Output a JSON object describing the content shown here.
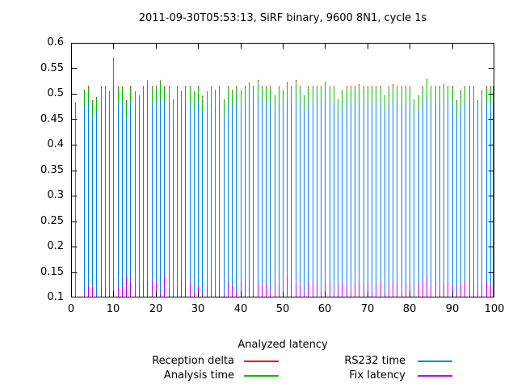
{
  "title": "2011-09-30T05:53:13, SiRF binary, 9600 8N1, cycle 1s",
  "legend": {
    "title": "Analyzed latency",
    "entries": [
      {
        "label": "Reception delta",
        "color": "#ff0000"
      },
      {
        "label": "Analysis time",
        "color": "#00c000"
      },
      {
        "label": "RS232 time",
        "color": "#0080ff"
      },
      {
        "label": "Fix latency",
        "color": "#c000ff"
      }
    ]
  },
  "chart_data": {
    "type": "bar",
    "style": "impulses",
    "title": "2011-09-30T05:53:13, SiRF binary, 9600 8N1, cycle 1s",
    "xlabel": "",
    "ylabel": "",
    "xlim": [
      0,
      100
    ],
    "ylim": [
      0.1,
      0.6
    ],
    "grid": false,
    "legend_title": "Analyzed latency",
    "legend_position": "below",
    "note": "gnuplot-style impulse plot; series drawn in listed order, later series overdraw earlier ones at the same x; point x=2 has no data",
    "x_ticks": {
      "values": [
        0,
        10,
        20,
        30,
        40,
        50,
        60,
        70,
        80,
        90,
        100
      ],
      "labels": [
        "0",
        "10",
        "20",
        "30",
        "40",
        "50",
        "60",
        "70",
        "80",
        "90",
        "100"
      ]
    },
    "y_ticks": {
      "values": [
        0.6,
        0.55,
        0.5,
        0.45,
        0.4,
        0.35,
        0.3,
        0.25,
        0.2,
        0.15,
        0.1
      ],
      "labels": [
        "0.6",
        "0.55",
        "0.5",
        "0.45",
        "0.4",
        "0.35",
        "0.3",
        "0.25",
        "0.2",
        "0.15",
        "0.1"
      ]
    },
    "x": [
      1,
      2,
      3,
      4,
      5,
      6,
      7,
      8,
      9,
      10,
      11,
      12,
      13,
      14,
      15,
      16,
      17,
      18,
      19,
      20,
      21,
      22,
      23,
      24,
      25,
      26,
      27,
      28,
      29,
      30,
      31,
      32,
      33,
      34,
      35,
      36,
      37,
      38,
      39,
      40,
      41,
      42,
      43,
      44,
      45,
      46,
      47,
      48,
      49,
      50,
      51,
      52,
      53,
      54,
      55,
      56,
      57,
      58,
      59,
      60,
      61,
      62,
      63,
      64,
      65,
      66,
      67,
      68,
      69,
      70,
      71,
      72,
      73,
      74,
      75,
      76,
      77,
      78,
      79,
      80,
      81,
      82,
      83,
      84,
      85,
      86,
      87,
      88,
      89,
      90,
      91,
      92,
      93,
      94,
      95,
      96,
      97,
      98,
      99,
      100
    ],
    "series": [
      {
        "name": "Reception delta",
        "color": "#ff0000",
        "values": [
          0.483,
          null,
          0.508,
          0.515,
          0.487,
          0.494,
          0.515,
          0.515,
          0.505,
          0.57,
          0.514,
          0.514,
          0.487,
          0.515,
          0.505,
          0.497,
          0.515,
          0.526,
          0.515,
          0.516,
          0.526,
          0.515,
          0.515,
          0.489,
          0.515,
          0.505,
          0.515,
          0.515,
          0.505,
          0.515,
          0.496,
          0.505,
          0.515,
          0.507,
          0.515,
          0.489,
          0.515,
          0.507,
          0.515,
          0.507,
          0.515,
          0.522,
          0.515,
          0.527,
          0.515,
          0.515,
          0.515,
          0.497,
          0.515,
          0.507,
          0.523,
          0.515,
          0.527,
          0.515,
          0.497,
          0.515,
          0.515,
          0.515,
          0.515,
          0.523,
          0.515,
          0.515,
          0.489,
          0.507,
          0.515,
          0.515,
          0.515,
          0.519,
          0.515,
          0.515,
          0.515,
          0.515,
          0.515,
          0.497,
          0.515,
          0.519,
          0.515,
          0.515,
          0.515,
          0.515,
          0.489,
          0.497,
          0.515,
          0.529,
          0.515,
          0.515,
          0.515,
          0.519,
          0.515,
          0.515,
          0.487,
          0.507,
          0.515,
          0.515,
          0.515,
          0.487,
          0.507,
          0.515,
          0.515,
          0.515
        ]
      },
      {
        "name": "Analysis time",
        "color": "#00c000",
        "values": [
          0.481,
          null,
          0.506,
          0.513,
          0.485,
          0.492,
          0.513,
          0.513,
          0.503,
          0.568,
          0.512,
          0.512,
          0.485,
          0.513,
          0.503,
          0.495,
          0.513,
          0.524,
          0.513,
          0.514,
          0.524,
          0.513,
          0.513,
          0.487,
          0.513,
          0.503,
          0.513,
          0.513,
          0.503,
          0.513,
          0.494,
          0.503,
          0.513,
          0.505,
          0.513,
          0.487,
          0.513,
          0.505,
          0.513,
          0.505,
          0.513,
          0.52,
          0.513,
          0.525,
          0.513,
          0.513,
          0.513,
          0.495,
          0.513,
          0.505,
          0.521,
          0.513,
          0.525,
          0.513,
          0.495,
          0.513,
          0.513,
          0.513,
          0.513,
          0.521,
          0.513,
          0.513,
          0.487,
          0.505,
          0.513,
          0.513,
          0.513,
          0.517,
          0.513,
          0.513,
          0.513,
          0.513,
          0.513,
          0.495,
          0.513,
          0.517,
          0.513,
          0.513,
          0.513,
          0.513,
          0.487,
          0.495,
          0.513,
          0.527,
          0.513,
          0.513,
          0.513,
          0.517,
          0.513,
          0.513,
          0.485,
          0.505,
          0.513,
          0.513,
          0.513,
          0.485,
          0.505,
          0.513,
          0.513,
          0.513
        ]
      },
      {
        "name": "RS232 time",
        "color": "#0080ff",
        "values": [
          0.449,
          null,
          0.478,
          0.483,
          0.455,
          0.465,
          0.483,
          0.483,
          0.473,
          0.525,
          0.483,
          0.483,
          0.455,
          0.483,
          0.473,
          0.465,
          0.483,
          0.49,
          0.483,
          0.483,
          0.49,
          0.483,
          0.483,
          0.457,
          0.483,
          0.473,
          0.483,
          0.483,
          0.473,
          0.483,
          0.465,
          0.473,
          0.483,
          0.475,
          0.483,
          0.457,
          0.483,
          0.475,
          0.483,
          0.475,
          0.483,
          0.488,
          0.483,
          0.492,
          0.483,
          0.483,
          0.483,
          0.465,
          0.483,
          0.475,
          0.488,
          0.483,
          0.492,
          0.483,
          0.465,
          0.483,
          0.483,
          0.483,
          0.483,
          0.488,
          0.483,
          0.483,
          0.457,
          0.475,
          0.483,
          0.483,
          0.483,
          0.485,
          0.483,
          0.483,
          0.483,
          0.483,
          0.483,
          0.465,
          0.483,
          0.485,
          0.483,
          0.483,
          0.483,
          0.483,
          0.457,
          0.465,
          0.483,
          0.494,
          0.483,
          0.483,
          0.483,
          0.485,
          0.483,
          0.483,
          0.455,
          0.475,
          0.483,
          0.483,
          0.483,
          0.455,
          0.475,
          0.483,
          0.483,
          0.483
        ]
      },
      {
        "name": "Fix latency",
        "color": "#c000ff",
        "values": [
          0.104,
          null,
          0.109,
          0.122,
          0.122,
          0.104,
          0.126,
          0.122,
          0.109,
          0.104,
          0.119,
          0.122,
          0.143,
          0.131,
          0.131,
          0.122,
          0.131,
          0.131,
          0.133,
          0.131,
          0.109,
          0.143,
          0.122,
          0.109,
          0.122,
          0.131,
          0.122,
          0.131,
          0.112,
          0.125,
          0.109,
          0.122,
          0.131,
          0.112,
          0.128,
          0.109,
          0.131,
          0.125,
          0.112,
          0.131,
          0.128,
          0.135,
          0.112,
          0.131,
          0.125,
          0.128,
          0.112,
          0.131,
          0.128,
          0.109,
          0.142,
          0.131,
          0.128,
          0.125,
          0.112,
          0.131,
          0.128,
          0.131,
          0.112,
          0.125,
          0.131,
          0.109,
          0.128,
          0.131,
          0.125,
          0.112,
          0.128,
          0.131,
          0.125,
          0.131,
          0.112,
          0.128,
          0.131,
          0.109,
          0.125,
          0.131,
          0.128,
          0.112,
          0.131,
          0.125,
          0.109,
          0.128,
          0.131,
          0.141,
          0.125,
          0.131,
          0.112,
          0.128,
          0.131,
          0.125,
          0.109,
          0.128,
          0.131,
          0.112,
          0.125,
          0.109,
          0.128,
          0.131,
          0.125,
          0.118
        ]
      }
    ]
  }
}
